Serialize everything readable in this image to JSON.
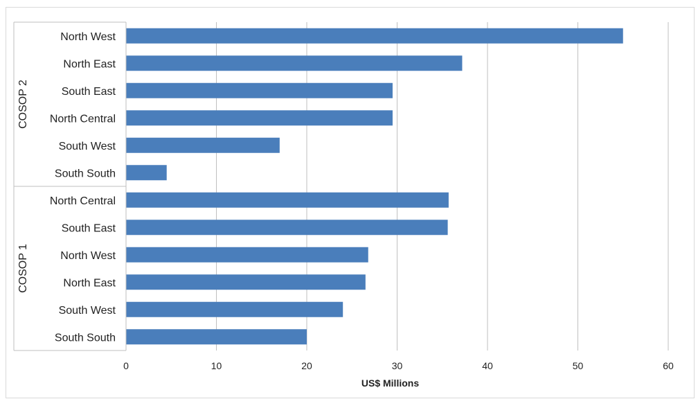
{
  "chart_data": {
    "type": "bar",
    "orientation": "horizontal",
    "xlabel": "US$ Millions",
    "xlim": [
      0,
      60
    ],
    "xticks": [
      "0",
      "10",
      "20",
      "30",
      "40",
      "50",
      "60"
    ],
    "grid": "vertical",
    "bar_color": "#4a7ebb",
    "groups": [
      {
        "name": "COSOP 2",
        "categories": [
          "North West",
          "North East",
          "South East",
          "North Central",
          "South West",
          "South South"
        ],
        "values": [
          55,
          37.2,
          29.5,
          29.5,
          17,
          4.5
        ]
      },
      {
        "name": "COSOP 1",
        "categories": [
          "North Central",
          "South East",
          "North West",
          "North East",
          "South West",
          "South South"
        ],
        "values": [
          35.7,
          35.6,
          26.8,
          26.5,
          24,
          20
        ]
      }
    ]
  }
}
